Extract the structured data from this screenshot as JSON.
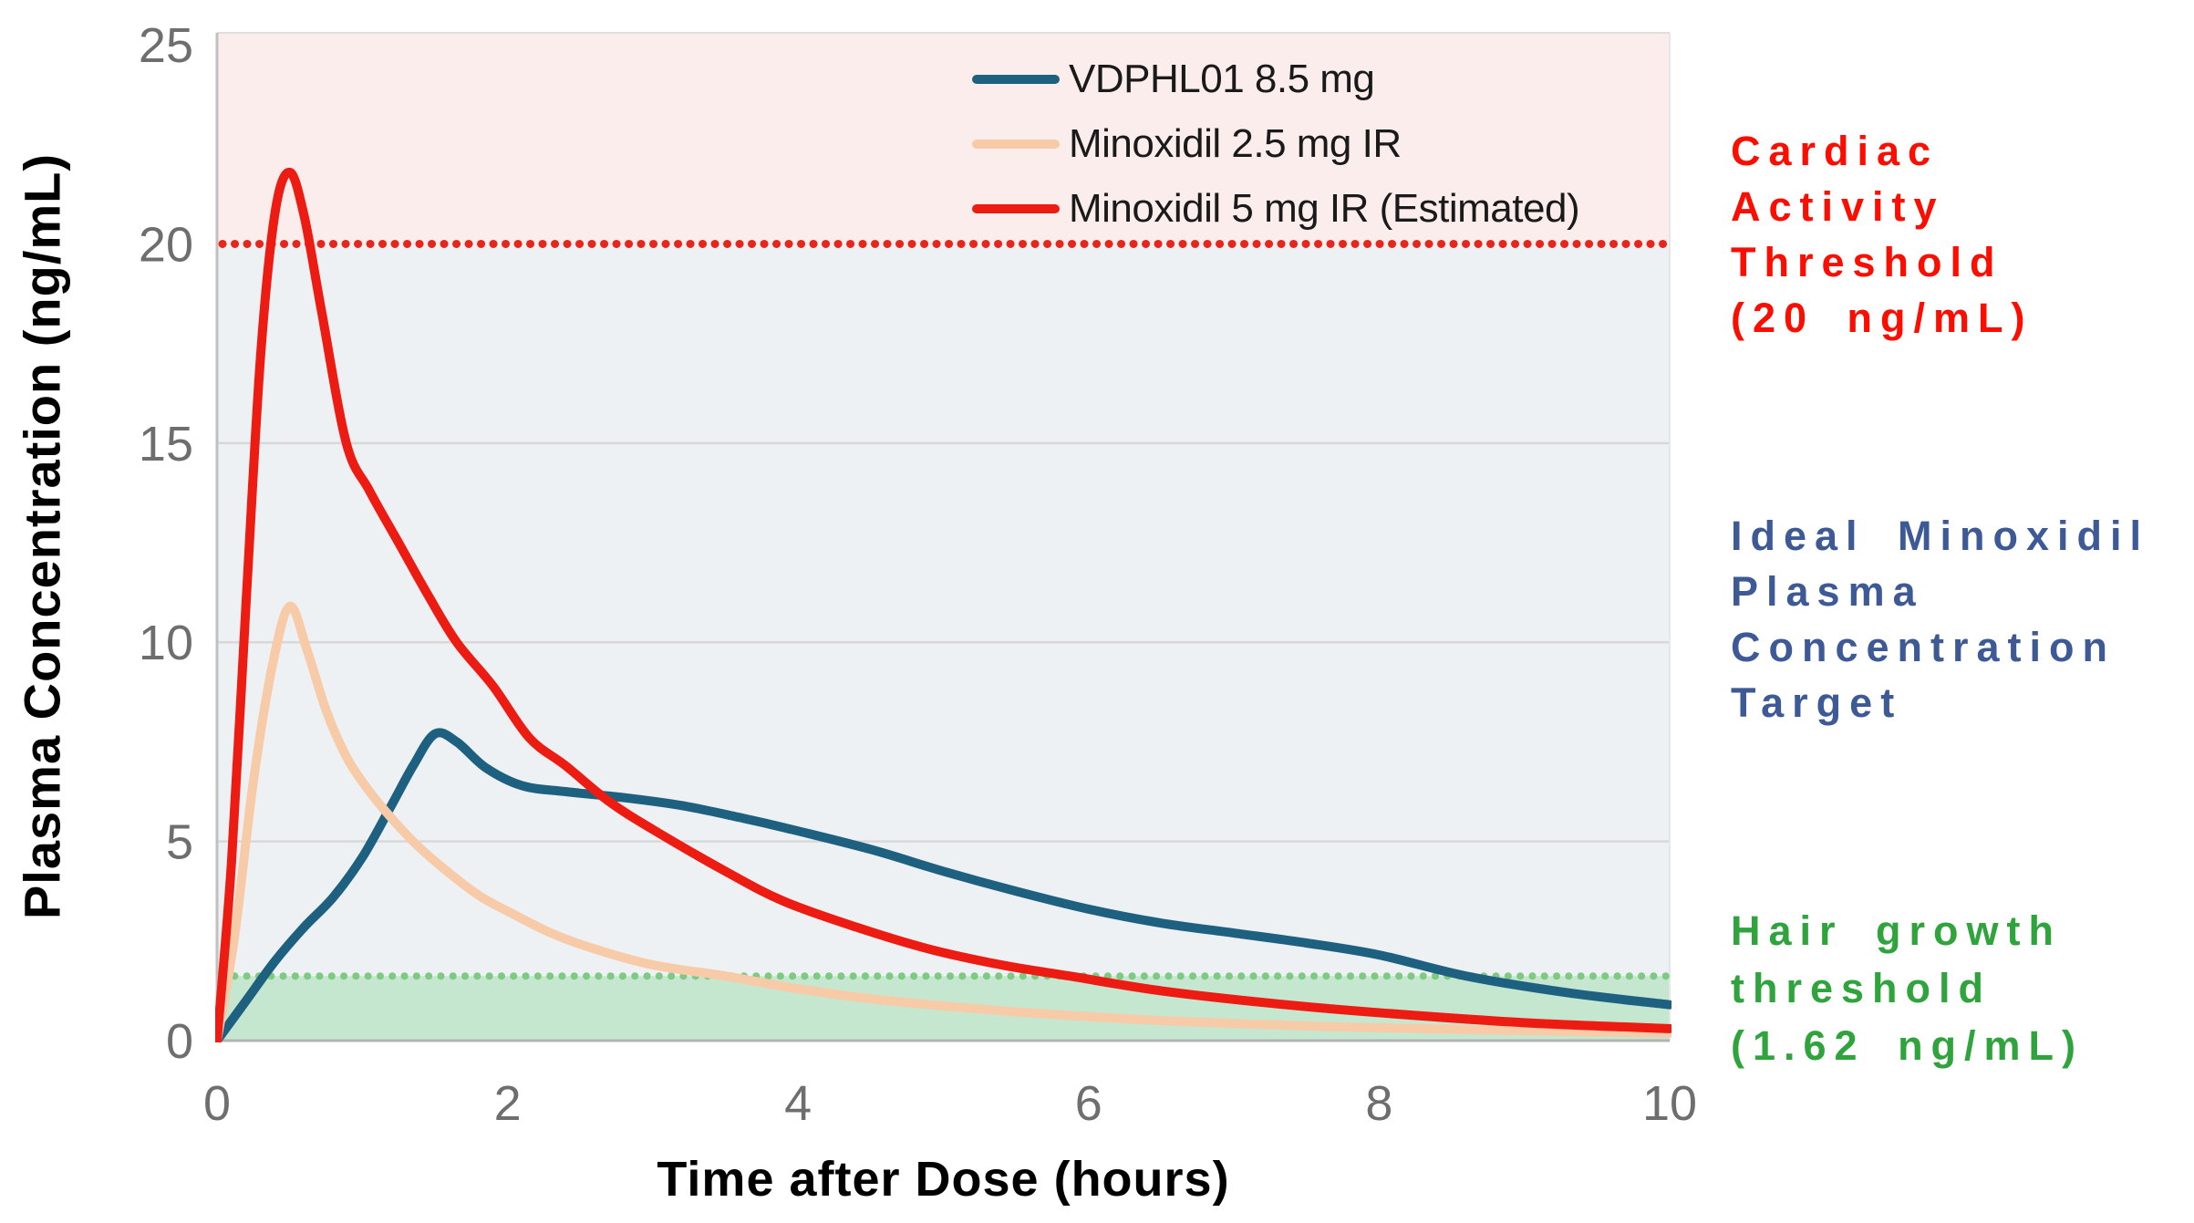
{
  "chart_data": {
    "type": "line",
    "title": "",
    "xlabel": "Time after Dose (hours)",
    "ylabel": "Plasma Concentration (ng/mL)",
    "xlim": [
      0,
      10
    ],
    "ylim": [
      0,
      25.3
    ],
    "x_ticks": [
      0,
      2,
      4,
      6,
      8,
      10
    ],
    "y_ticks": [
      0,
      5,
      10,
      15,
      20,
      25
    ],
    "gridlines_y": [
      5,
      10,
      15
    ],
    "grid": "horizontal-only",
    "legend_position": "inside-top-center",
    "series": [
      {
        "name": "VDPHL01 8.5 mg",
        "color": "#1e607f",
        "stroke_width": 10,
        "points": [
          [
            0,
            0
          ],
          [
            0.2,
            1.0
          ],
          [
            0.4,
            2.0
          ],
          [
            0.6,
            2.85
          ],
          [
            0.8,
            3.6
          ],
          [
            1.0,
            4.6
          ],
          [
            1.2,
            5.9
          ],
          [
            1.35,
            6.9
          ],
          [
            1.5,
            7.7
          ],
          [
            1.65,
            7.5
          ],
          [
            1.85,
            6.85
          ],
          [
            2.1,
            6.4
          ],
          [
            2.4,
            6.25
          ],
          [
            2.8,
            6.1
          ],
          [
            3.2,
            5.9
          ],
          [
            3.6,
            5.6
          ],
          [
            3.9,
            5.35
          ],
          [
            4.5,
            4.8
          ],
          [
            5.0,
            4.25
          ],
          [
            5.5,
            3.75
          ],
          [
            6.0,
            3.3
          ],
          [
            6.5,
            2.95
          ],
          [
            7.0,
            2.7
          ],
          [
            7.5,
            2.45
          ],
          [
            8.0,
            2.15
          ],
          [
            8.6,
            1.62
          ],
          [
            9.3,
            1.2
          ],
          [
            10,
            0.9
          ]
        ]
      },
      {
        "name": "Minoxidil 2.5 mg IR",
        "color": "#f8cba8",
        "stroke_width": 10,
        "points": [
          [
            0,
            0
          ],
          [
            0.12,
            2.6
          ],
          [
            0.25,
            6.5
          ],
          [
            0.38,
            9.4
          ],
          [
            0.5,
            10.9
          ],
          [
            0.62,
            9.8
          ],
          [
            0.75,
            8.3
          ],
          [
            0.88,
            7.2
          ],
          [
            1.0,
            6.5
          ],
          [
            1.15,
            5.8
          ],
          [
            1.35,
            5.0
          ],
          [
            1.55,
            4.35
          ],
          [
            1.8,
            3.65
          ],
          [
            2.0,
            3.25
          ],
          [
            2.3,
            2.7
          ],
          [
            2.6,
            2.3
          ],
          [
            3.0,
            1.9
          ],
          [
            3.5,
            1.62
          ],
          [
            4.0,
            1.3
          ],
          [
            4.5,
            1.05
          ],
          [
            5.0,
            0.87
          ],
          [
            5.5,
            0.72
          ],
          [
            6.0,
            0.6
          ],
          [
            6.5,
            0.5
          ],
          [
            7.0,
            0.43
          ],
          [
            7.5,
            0.37
          ],
          [
            8.0,
            0.32
          ],
          [
            9.0,
            0.25
          ],
          [
            10,
            0.19
          ]
        ]
      },
      {
        "name": "Minoxidil 5 mg IR (Estimated)",
        "color": "#ec1c12",
        "stroke_width": 10,
        "points": [
          [
            0,
            0
          ],
          [
            0.1,
            4.5
          ],
          [
            0.2,
            11
          ],
          [
            0.3,
            17.2
          ],
          [
            0.4,
            20.8
          ],
          [
            0.5,
            21.8
          ],
          [
            0.6,
            20.7
          ],
          [
            0.72,
            18.3
          ],
          [
            0.89,
            15.0
          ],
          [
            1.05,
            13.8
          ],
          [
            1.25,
            12.5
          ],
          [
            1.45,
            11.2
          ],
          [
            1.65,
            10.0
          ],
          [
            1.9,
            8.9
          ],
          [
            2.15,
            7.6
          ],
          [
            2.4,
            6.9
          ],
          [
            2.7,
            6.0
          ],
          [
            3.0,
            5.3
          ],
          [
            3.5,
            4.25
          ],
          [
            3.9,
            3.5
          ],
          [
            4.4,
            2.85
          ],
          [
            4.9,
            2.3
          ],
          [
            5.4,
            1.9
          ],
          [
            5.87,
            1.62
          ],
          [
            6.5,
            1.25
          ],
          [
            7.25,
            0.94
          ],
          [
            8.0,
            0.7
          ],
          [
            9.0,
            0.45
          ],
          [
            10,
            0.3
          ]
        ]
      }
    ],
    "thresholds": [
      {
        "name": "cardiac-activity-threshold",
        "value": 20,
        "color": "#e8251a",
        "style": "dotted",
        "dot_width": 9,
        "dot_gap": 13.4
      },
      {
        "name": "hair-growth-threshold",
        "value": 1.62,
        "color": "#7fca82",
        "style": "dotted",
        "dot_width": 8,
        "dot_gap": 13.2
      }
    ],
    "bands": [
      {
        "name": "above-cardiac-threshold",
        "from": 20,
        "to": 25.3,
        "color": "#fbedeb"
      },
      {
        "name": "ideal-target-range",
        "from": 1.62,
        "to": 20,
        "color": "#eef1f4"
      },
      {
        "name": "below-hair-growth-threshold",
        "from": 0,
        "to": 1.62,
        "color": "#c5e6cf"
      }
    ],
    "tick_color": "#6e6e6e",
    "gridline_color": "#d8d8d8",
    "axis_line_color": "#b3b3b3"
  },
  "legend": {
    "items": [
      {
        "label": "VDPHL01 8.5 mg",
        "color": "#1e607f"
      },
      {
        "label": "Minoxidil 2.5 mg IR",
        "color": "#f8cba8"
      },
      {
        "label": "Minoxidil 5 mg IR (Estimated)",
        "color": "#ec1c12"
      }
    ]
  },
  "annotations": {
    "cardiac": {
      "text": "Cardiac\nActivity\nThreshold\n(20 ng/mL)",
      "color": "#fb0d00"
    },
    "ideal": {
      "text": "Ideal Minoxidil\nPlasma\nConcentration\nTarget",
      "color": "#3e5a96"
    },
    "hair": {
      "text": "Hair growth\nthreshold\n(1.62 ng/mL)",
      "color": "#2fa33c"
    }
  }
}
